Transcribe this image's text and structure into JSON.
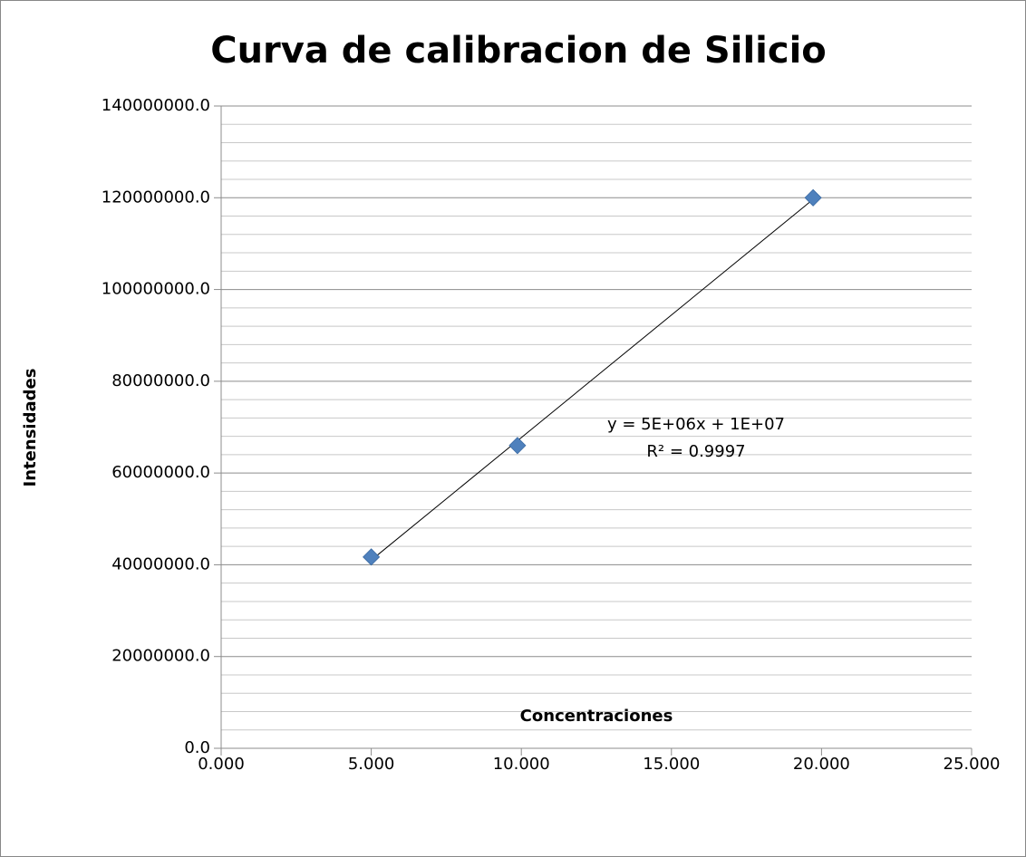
{
  "chart_data": {
    "type": "scatter",
    "title": "Curva de calibracion de Silicio",
    "x_label": "Concentraciones",
    "y_label": "Intensidades",
    "series": [
      {
        "name": "Silicio",
        "color": "#4f81bd",
        "x": [
          5.0,
          9.87,
          19.72
        ],
        "values": [
          41700000,
          66000000,
          120000000
        ]
      }
    ],
    "trendline": true,
    "annotations": [
      "y = 5E+06x + 1E+07",
      "R² = 0.9997"
    ],
    "xlim": [
      0,
      25
    ],
    "xticks": [
      {
        "value": 0,
        "label": "0.000"
      },
      {
        "value": 5,
        "label": "5.000"
      },
      {
        "value": 10,
        "label": "10.000"
      },
      {
        "value": 15,
        "label": "15.000"
      },
      {
        "value": 20,
        "label": "20.000"
      },
      {
        "value": 25,
        "label": "25.000"
      }
    ],
    "ylim": [
      0,
      140000000
    ],
    "yticks": [
      {
        "value": 0,
        "label": "0.0"
      },
      {
        "value": 20000000,
        "label": "20000000.0"
      },
      {
        "value": 40000000,
        "label": "40000000.0"
      },
      {
        "value": 60000000,
        "label": "60000000.0"
      },
      {
        "value": 80000000,
        "label": "80000000.0"
      },
      {
        "value": 100000000,
        "label": "100000000.0"
      },
      {
        "value": 120000000,
        "label": "120000000.0"
      },
      {
        "value": 140000000,
        "label": "140000000.0"
      }
    ],
    "yminorticks": [
      4000000,
      8000000,
      12000000,
      16000000,
      24000000,
      28000000,
      32000000,
      36000000,
      44000000,
      48000000,
      52000000,
      56000000,
      64000000,
      68000000,
      72000000,
      76000000,
      84000000,
      88000000,
      92000000,
      96000000,
      104000000,
      108000000,
      112000000,
      116000000,
      124000000,
      128000000,
      132000000,
      136000000
    ],
    "grid": true
  }
}
